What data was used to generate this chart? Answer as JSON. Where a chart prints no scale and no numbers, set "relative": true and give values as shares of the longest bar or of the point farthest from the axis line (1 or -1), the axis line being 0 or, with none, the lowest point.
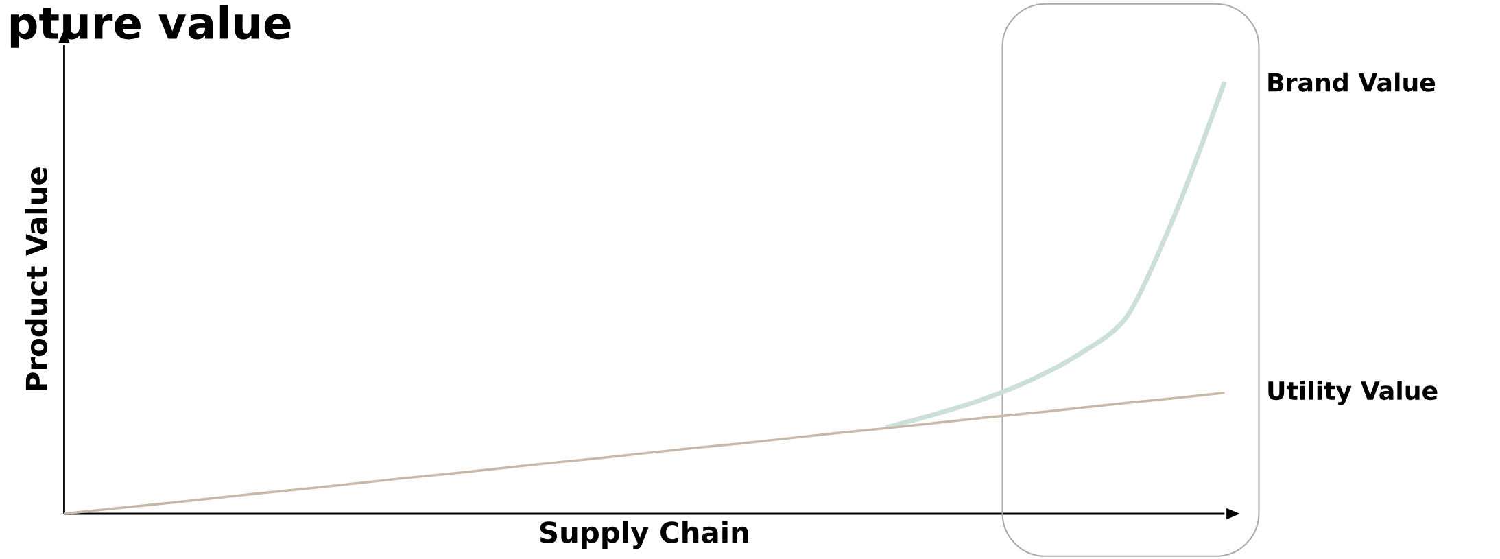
{
  "chart_data": {
    "type": "line",
    "title": "pture value",
    "xlabel": "Supply Chain",
    "ylabel": "Product Value",
    "relative": true,
    "legend": false,
    "marker": "none",
    "line_style": "solid",
    "categories": [
      null,
      null,
      null,
      null,
      null,
      null,
      null,
      null,
      null,
      null,
      null,
      null,
      null,
      null,
      null,
      null,
      null,
      null,
      null,
      null,
      null,
      null,
      null,
      null,
      null
    ],
    "series": [
      {
        "name": "Brand Value",
        "color": "#cde0d8",
        "values": [
          null,
          null,
          null,
          null,
          null,
          null,
          null,
          null,
          null,
          null,
          null,
          null,
          null,
          null,
          null,
          null,
          null,
          0.2,
          0.23,
          0.265,
          0.31,
          0.37,
          0.46,
          0.7,
          1.0
        ]
      },
      {
        "name": "Utility Value",
        "color": "#c8b8a8",
        "values": [
          0,
          0.012,
          0.023,
          0.035,
          0.047,
          0.058,
          0.07,
          0.082,
          0.093,
          0.105,
          0.117,
          0.128,
          0.14,
          0.152,
          0.163,
          0.175,
          0.187,
          0.198,
          0.21,
          0.222,
          0.233,
          0.245,
          0.257,
          0.268,
          0.28
        ]
      }
    ]
  }
}
